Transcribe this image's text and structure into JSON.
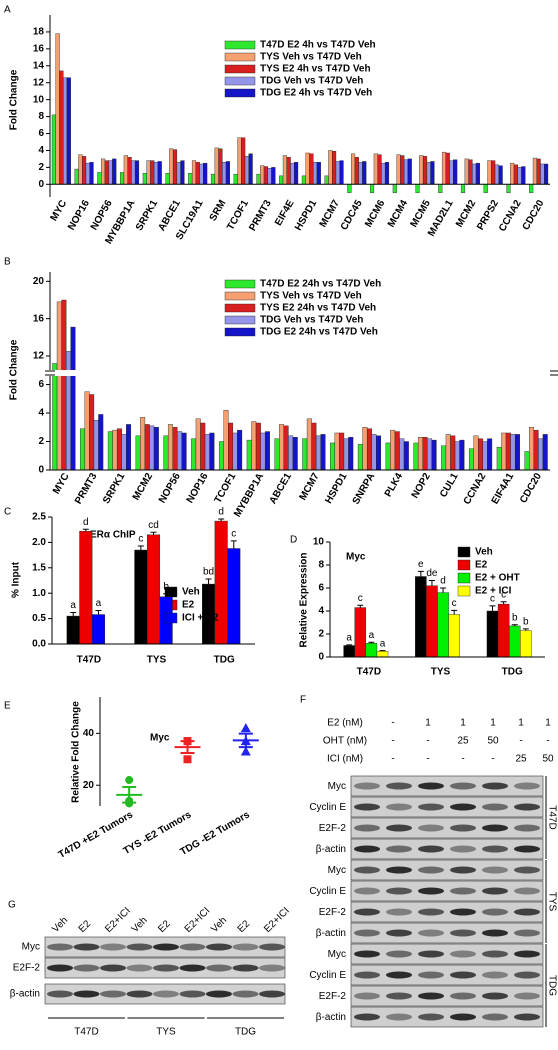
{
  "chart_data": [
    {
      "type": "bar",
      "panel": "A",
      "ylabel": "Fold Change",
      "categories": [
        "MYC",
        "NOP16",
        "NOP56",
        "MYBBP1A",
        "SRPK1",
        "ABCE1",
        "SLC19A1",
        "SRM",
        "TCOF1",
        "PRMT3",
        "EIF4E",
        "HSPD1",
        "MCM7",
        "CDC45",
        "MCM6",
        "MCM4",
        "MCM5",
        "MAD2L1",
        "MCM2",
        "PRPS2",
        "CCNA2",
        "CDC20"
      ],
      "series": [
        {
          "name": "T47D E2 4h vs T47D Veh",
          "color": "#2ee82e",
          "values": [
            8.2,
            1.8,
            1.4,
            1.4,
            1.3,
            1.3,
            1.3,
            1.2,
            1.2,
            1.2,
            1.0,
            1.0,
            1.0,
            -1.0,
            -1.0,
            -1.0,
            -1.0,
            -1.0,
            -1.0,
            -1.0,
            -1.0,
            -1.0
          ]
        },
        {
          "name": "TYS Veh vs T47D Veh",
          "color": "#f4a070",
          "values": [
            17.8,
            3.5,
            3.0,
            3.4,
            2.8,
            4.2,
            2.8,
            4.3,
            5.5,
            2.2,
            3.4,
            3.7,
            4.0,
            3.6,
            3.6,
            3.5,
            3.4,
            3.8,
            3.0,
            2.8,
            2.5,
            3.1
          ]
        },
        {
          "name": "TYS E2 4h vs T47D Veh",
          "color": "#d81f1f",
          "values": [
            13.4,
            3.3,
            2.8,
            3.2,
            2.8,
            4.1,
            2.6,
            4.2,
            5.5,
            2.1,
            3.2,
            3.6,
            3.9,
            3.2,
            3.5,
            3.4,
            3.3,
            3.7,
            2.9,
            2.8,
            2.3,
            3.0
          ]
        },
        {
          "name": "TDG Veh vs T47D Veh",
          "color": "#9494e8",
          "values": [
            12.6,
            2.5,
            2.8,
            2.8,
            2.6,
            2.6,
            2.4,
            2.6,
            3.3,
            1.9,
            2.5,
            2.6,
            2.7,
            2.6,
            2.5,
            2.9,
            2.6,
            2.8,
            2.4,
            2.3,
            2.0,
            2.4
          ]
        },
        {
          "name": "TDG E2 4h vs T47D Veh",
          "color": "#1414c8",
          "values": [
            12.6,
            2.6,
            3.0,
            2.8,
            2.7,
            2.8,
            2.5,
            2.7,
            3.6,
            2.0,
            2.6,
            2.6,
            2.8,
            2.7,
            2.6,
            3.0,
            2.7,
            2.9,
            2.5,
            2.2,
            2.1,
            2.4
          ]
        }
      ],
      "ylim": [
        -1.5,
        20
      ],
      "yticks": [
        0,
        2,
        4,
        6,
        8,
        10,
        12,
        14,
        16,
        18
      ]
    },
    {
      "type": "bar",
      "panel": "B",
      "ylabel": "Fold Change",
      "categories": [
        "MYC",
        "PRMT3",
        "SRPK1",
        "MCM2",
        "NOP56",
        "NOP16",
        "TCOF1",
        "MYBBP1A",
        "ABCE1",
        "MCM7",
        "HSPD1",
        "SNRPA",
        "PLK4",
        "NOP2",
        "CUL1",
        "CCNA2",
        "EIF4A1",
        "CDC20"
      ],
      "series": [
        {
          "name": "T47D E2 24h vs T47D Veh",
          "color": "#2ee82e",
          "values": [
            11.2,
            2.9,
            2.7,
            2.4,
            2.4,
            2.2,
            2.0,
            2.1,
            2.2,
            2.2,
            1.9,
            1.8,
            1.9,
            1.9,
            1.7,
            1.5,
            1.6,
            1.3
          ]
        },
        {
          "name": "TYS Veh vs T47D Veh",
          "color": "#f4a070",
          "values": [
            17.8,
            5.5,
            2.8,
            3.7,
            3.2,
            3.6,
            4.2,
            3.4,
            3.2,
            3.6,
            2.6,
            3.0,
            2.8,
            2.3,
            2.5,
            2.4,
            2.6,
            3.0
          ]
        },
        {
          "name": "TYS E2 24h vs T47D Veh",
          "color": "#d81f1f",
          "values": [
            18.0,
            5.3,
            2.9,
            3.2,
            3.0,
            3.3,
            3.3,
            3.3,
            3.1,
            3.3,
            2.6,
            2.9,
            2.7,
            2.3,
            2.4,
            2.2,
            2.6,
            2.8
          ]
        },
        {
          "name": "TDG Veh vs T47D Veh",
          "color": "#9494e8",
          "values": [
            12.5,
            3.5,
            2.5,
            3.1,
            2.7,
            2.5,
            2.6,
            2.6,
            2.4,
            2.4,
            2.2,
            2.5,
            2.2,
            2.2,
            2.0,
            2.0,
            2.5,
            2.2
          ]
        },
        {
          "name": "TDG E2 24h vs T47D Veh",
          "color": "#1414c8",
          "values": [
            15.1,
            3.9,
            3.2,
            3.0,
            2.6,
            2.6,
            2.8,
            2.7,
            2.3,
            2.5,
            2.3,
            2.4,
            2.0,
            2.1,
            2.1,
            2.2,
            2.5,
            2.5
          ]
        }
      ],
      "ylim": [
        0,
        6.6
      ],
      "yticks": [
        0,
        2,
        4,
        6
      ],
      "ylim_upper": [
        10.5,
        21
      ],
      "yticks_upper": [
        12,
        16,
        20
      ],
      "axis_break": true
    },
    {
      "type": "bar",
      "panel": "C",
      "title": "ERα  ChIP",
      "ylabel": "% Input",
      "categories": [
        "T47D",
        "TYS",
        "TDG"
      ],
      "series": [
        {
          "name": "Veh",
          "color": "#000000",
          "values": [
            0.55,
            1.85,
            1.18
          ],
          "errors": [
            0.07,
            0.08,
            0.1
          ],
          "letters": [
            "a",
            "c",
            "bd"
          ]
        },
        {
          "name": "E2",
          "color": "#ee0000",
          "values": [
            2.22,
            2.15,
            2.42
          ],
          "errors": [
            0.04,
            0.05,
            0.04
          ],
          "letters": [
            "d",
            "cd",
            "d"
          ]
        },
        {
          "name": "ICI + E2",
          "color": "#0000ff",
          "values": [
            0.58,
            0.93,
            1.88
          ],
          "errors": [
            0.08,
            0.06,
            0.15
          ],
          "letters": [
            "a",
            "b",
            "c"
          ]
        }
      ],
      "ylim": [
        0,
        2.5
      ],
      "yticks": [
        {
          "value": 0,
          "label": "0.0"
        },
        0.5,
        {
          "value": 1,
          "label": "1.0"
        },
        1.5,
        {
          "value": 2,
          "label": "2.0"
        },
        2.5
      ]
    },
    {
      "type": "bar",
      "panel": "D",
      "title": "Myc",
      "ylabel": "Relative Expression",
      "categories": [
        "T47D",
        "TYS",
        "TDG"
      ],
      "series": [
        {
          "name": "Veh",
          "color": "#000000",
          "values": [
            1.0,
            7.0,
            4.0
          ],
          "errors": [
            0.05,
            0.45,
            0.45
          ],
          "letters": [
            "a",
            "e",
            "c"
          ]
        },
        {
          "name": "E2",
          "color": "#ee0000",
          "values": [
            4.3,
            6.2,
            4.6
          ],
          "errors": [
            0.2,
            0.45,
            0.2
          ],
          "letters": [
            "c",
            "de",
            "c"
          ]
        },
        {
          "name": "E2 + OHT",
          "color": "#00ee00",
          "values": [
            1.2,
            5.6,
            2.7
          ],
          "errors": [
            0.08,
            0.4,
            0.1
          ],
          "letters": [
            "a",
            "d",
            "b"
          ]
        },
        {
          "name": "E2 + ICI",
          "color": "#ffff00",
          "values": [
            0.5,
            3.7,
            2.3
          ],
          "errors": [
            0.05,
            0.35,
            0.15
          ],
          "letters": [
            "a",
            "c",
            "b"
          ]
        }
      ],
      "ylim": [
        0,
        10
      ],
      "yticks": [
        0,
        2,
        4,
        6,
        8,
        10
      ]
    },
    {
      "type": "dot",
      "panel": "E",
      "title": "Myc",
      "ylabel": "Relative Fold Change",
      "categories": [
        "T47D +E2 Tumors",
        "TYS -E2 Tumors",
        "TDG -E2 Tumors"
      ],
      "series": [
        {
          "color": "#22bb22",
          "marker": "circle",
          "values": [
            22,
            14,
            13
          ],
          "mean": 16.3,
          "error": 3.0
        },
        {
          "color": "#ee2222",
          "marker": "square",
          "values": [
            37,
            37,
            30
          ],
          "mean": 34.7,
          "error": 2.3
        },
        {
          "color": "#2222ee",
          "marker": "triangle",
          "values": [
            42,
            37,
            33
          ],
          "mean": 37.3,
          "error": 2.6
        }
      ],
      "ylim": [
        12,
        54
      ],
      "yticks": [
        20,
        40
      ]
    }
  ],
  "blots": {
    "F": {
      "panel": "F",
      "treatments": [
        {
          "label": "E2 (nM)",
          "lanes": [
            "-",
            "1",
            "1",
            "1",
            "1",
            "1"
          ]
        },
        {
          "label": "OHT (nM)",
          "lanes": [
            "-",
            "-",
            "25",
            "50",
            "-",
            "-"
          ]
        },
        {
          "label": "ICI (nM)",
          "lanes": [
            "-",
            "-",
            "-",
            "-",
            "25",
            "50"
          ]
        }
      ],
      "groups": [
        {
          "name": "T47D",
          "rows": [
            "Myc",
            "Cyclin E",
            "E2F-2",
            "β-actin"
          ]
        },
        {
          "name": "TYS",
          "rows": [
            "Myc",
            "Cyclin E",
            "E2F-2",
            "β-actin"
          ]
        },
        {
          "name": "TDG",
          "rows": [
            "Myc",
            "Cyclin E",
            "E2F-2",
            "β-actin"
          ]
        }
      ]
    },
    "G": {
      "panel": "G",
      "lanes": [
        "Veh",
        "E2",
        "E2+ICI",
        "Veh",
        "E2",
        "E2+ICI",
        "Veh",
        "E2",
        "E2+ICI"
      ],
      "rows": [
        "Myc",
        "E2F-2",
        "β-actin"
      ],
      "groups": [
        "T47D",
        "TYS",
        "TDG"
      ]
    }
  }
}
